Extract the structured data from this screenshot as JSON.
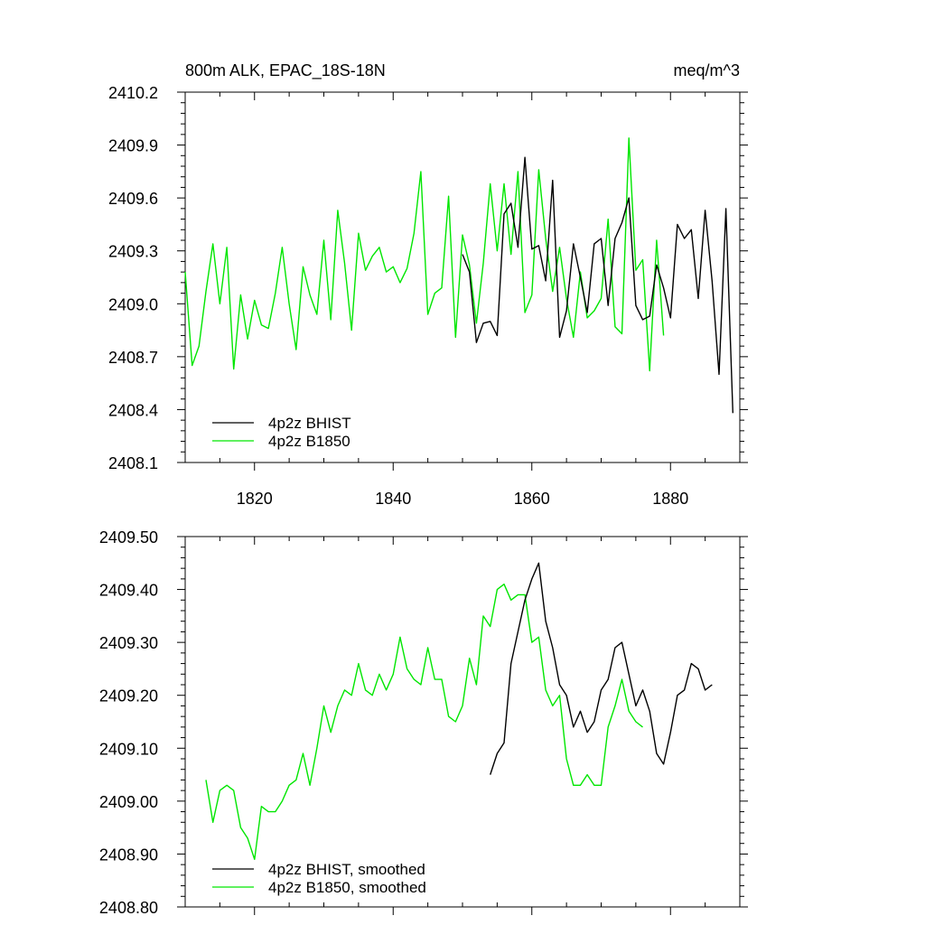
{
  "chart_data": [
    {
      "type": "line",
      "title": "800m ALK, EPAC_18S-18N",
      "units": "meq/m^3",
      "xlim": [
        1810,
        1890
      ],
      "ylim": [
        2408.1,
        2410.2
      ],
      "xticks": [
        1820,
        1840,
        1860,
        1880
      ],
      "xtick_labels": [
        "1820",
        "1840",
        "1860",
        "1880"
      ],
      "yticks": [
        2408.1,
        2408.4,
        2408.7,
        2409.0,
        2409.3,
        2409.6,
        2409.9,
        2410.2
      ],
      "ytick_labels": [
        "2408.1",
        "2408.4",
        "2408.7",
        "2409.0",
        "2409.3",
        "2409.6",
        "2409.9",
        "2410.2"
      ],
      "legend_position": "bottom-left",
      "series": [
        {
          "name": "4p2z BHIST",
          "color": "#000000",
          "x": [
            1850,
            1851,
            1852,
            1853,
            1854,
            1855,
            1856,
            1857,
            1858,
            1859,
            1860,
            1861,
            1862,
            1863,
            1864,
            1865,
            1866,
            1867,
            1868,
            1869,
            1870,
            1871,
            1872,
            1873,
            1874,
            1875,
            1876,
            1877,
            1878,
            1879,
            1880,
            1881,
            1882,
            1883,
            1884,
            1885,
            1886,
            1887,
            1888,
            1889
          ],
          "y": [
            2409.28,
            2409.18,
            2408.78,
            2408.89,
            2408.9,
            2408.82,
            2409.51,
            2409.57,
            2409.32,
            2409.83,
            2409.31,
            2409.33,
            2409.13,
            2409.7,
            2408.81,
            2408.96,
            2409.34,
            2409.15,
            2408.95,
            2409.34,
            2409.37,
            2408.99,
            2409.37,
            2409.46,
            2409.6,
            2408.99,
            2408.91,
            2408.93,
            2409.22,
            2409.09,
            2408.92,
            2409.45,
            2409.37,
            2409.42,
            2409.03,
            2409.53,
            2409.13,
            2408.6,
            2409.54,
            2408.38
          ]
        },
        {
          "name": "4p2z B1850",
          "color": "#00e600",
          "x": [
            1810,
            1811,
            1812,
            1813,
            1814,
            1815,
            1816,
            1817,
            1818,
            1819,
            1820,
            1821,
            1822,
            1823,
            1824,
            1825,
            1826,
            1827,
            1828,
            1829,
            1830,
            1831,
            1832,
            1833,
            1834,
            1835,
            1836,
            1837,
            1838,
            1839,
            1840,
            1841,
            1842,
            1843,
            1844,
            1845,
            1846,
            1847,
            1848,
            1849,
            1850,
            1851,
            1852,
            1853,
            1854,
            1855,
            1856,
            1857,
            1858,
            1859,
            1860,
            1861,
            1862,
            1863,
            1864,
            1865,
            1866,
            1867,
            1868,
            1869,
            1870,
            1871,
            1872,
            1873,
            1874,
            1875,
            1876,
            1877,
            1878,
            1879
          ],
          "y": [
            2409.18,
            2408.65,
            2408.76,
            2409.07,
            2409.34,
            2409.0,
            2409.32,
            2408.63,
            2409.05,
            2408.8,
            2409.02,
            2408.88,
            2408.86,
            2409.06,
            2409.32,
            2409.0,
            2408.74,
            2409.21,
            2409.05,
            2408.94,
            2409.36,
            2408.91,
            2409.53,
            2409.23,
            2408.85,
            2409.4,
            2409.19,
            2409.27,
            2409.32,
            2409.18,
            2409.21,
            2409.12,
            2409.2,
            2409.4,
            2409.75,
            2408.94,
            2409.06,
            2409.09,
            2409.61,
            2408.81,
            2409.39,
            2409.22,
            2408.89,
            2409.23,
            2409.68,
            2409.3,
            2409.68,
            2409.28,
            2409.75,
            2408.95,
            2409.05,
            2409.76,
            2409.37,
            2409.07,
            2409.32,
            2409.03,
            2408.81,
            2409.18,
            2408.92,
            2408.96,
            2409.03,
            2409.48,
            2408.87,
            2408.83,
            2409.94,
            2409.19,
            2409.25,
            2408.62,
            2409.36,
            2408.82
          ]
        }
      ]
    },
    {
      "type": "line",
      "xlim": [
        1810,
        1890
      ],
      "ylim": [
        2408.8,
        2409.5
      ],
      "xticks": [
        1820,
        1840,
        1860,
        1880
      ],
      "yticks": [
        2408.8,
        2408.9,
        2409.0,
        2409.1,
        2409.2,
        2409.3,
        2409.4,
        2409.5
      ],
      "ytick_labels": [
        "2408.80",
        "2408.90",
        "2409.00",
        "2409.10",
        "2409.20",
        "2409.30",
        "2409.40",
        "2409.50"
      ],
      "legend_position": "bottom-left",
      "series": [
        {
          "name": "4p2z BHIST, smoothed",
          "color": "#000000",
          "x": [
            1854,
            1855,
            1856,
            1857,
            1858,
            1859,
            1860,
            1861,
            1862,
            1863,
            1864,
            1865,
            1866,
            1867,
            1868,
            1869,
            1870,
            1871,
            1872,
            1873,
            1874,
            1875,
            1876,
            1877,
            1878,
            1879,
            1880,
            1881,
            1882,
            1883,
            1884,
            1885,
            1886
          ],
          "y": [
            2409.05,
            2409.09,
            2409.11,
            2409.26,
            2409.32,
            2409.38,
            2409.42,
            2409.45,
            2409.34,
            2409.29,
            2409.22,
            2409.2,
            2409.14,
            2409.17,
            2409.13,
            2409.15,
            2409.21,
            2409.23,
            2409.29,
            2409.3,
            2409.24,
            2409.18,
            2409.21,
            2409.17,
            2409.09,
            2409.07,
            2409.13,
            2409.2,
            2409.21,
            2409.26,
            2409.25,
            2409.21,
            2409.22
          ]
        },
        {
          "name": "4p2z B1850, smoothed",
          "color": "#00e600",
          "x": [
            1813,
            1814,
            1815,
            1816,
            1817,
            1818,
            1819,
            1820,
            1821,
            1822,
            1823,
            1824,
            1825,
            1826,
            1827,
            1828,
            1829,
            1830,
            1831,
            1832,
            1833,
            1834,
            1835,
            1836,
            1837,
            1838,
            1839,
            1840,
            1841,
            1842,
            1843,
            1844,
            1845,
            1846,
            1847,
            1848,
            1849,
            1850,
            1851,
            1852,
            1853,
            1854,
            1855,
            1856,
            1857,
            1858,
            1859,
            1860,
            1861,
            1862,
            1863,
            1864,
            1865,
            1866,
            1867,
            1868,
            1869,
            1870,
            1871,
            1872,
            1873,
            1874,
            1875,
            1876
          ],
          "y": [
            2409.04,
            2408.96,
            2409.02,
            2409.03,
            2409.02,
            2408.95,
            2408.93,
            2408.89,
            2408.99,
            2408.98,
            2408.98,
            2409.0,
            2409.03,
            2409.04,
            2409.09,
            2409.03,
            2409.1,
            2409.18,
            2409.13,
            2409.18,
            2409.21,
            2409.2,
            2409.26,
            2409.21,
            2409.2,
            2409.24,
            2409.21,
            2409.24,
            2409.31,
            2409.25,
            2409.23,
            2409.22,
            2409.29,
            2409.23,
            2409.23,
            2409.16,
            2409.15,
            2409.18,
            2409.27,
            2409.22,
            2409.35,
            2409.33,
            2409.4,
            2409.41,
            2409.38,
            2409.39,
            2409.39,
            2409.3,
            2409.31,
            2409.21,
            2409.18,
            2409.2,
            2409.08,
            2409.03,
            2409.03,
            2409.05,
            2409.03,
            2409.03,
            2409.14,
            2409.18,
            2409.23,
            2409.17,
            2409.15,
            2409.14
          ]
        }
      ]
    }
  ]
}
